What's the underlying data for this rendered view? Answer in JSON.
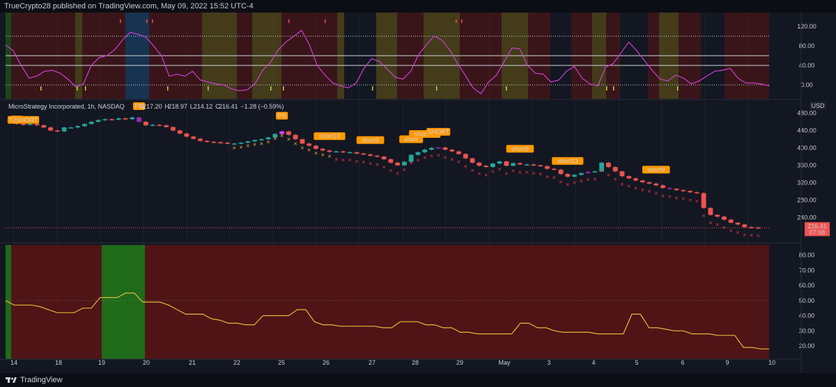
{
  "header": {
    "text": "TrueCrypto28 published on TradingView.com, May 09, 2022 15:52 UTC-4"
  },
  "footer": {
    "brand": "TradingView"
  },
  "colors": {
    "background": "#131722",
    "up": "#26a69a",
    "down": "#ef5350",
    "purple": "#9c27b0",
    "magenta": "#e040fb",
    "label_orange": "#ff9800",
    "bg_red": "#5a1414",
    "bg_green": "#1f6b1a",
    "bg_olive": "#6b5a14",
    "bg_blue": "#1c4a78",
    "oscillator": "#d13fd6",
    "bottom_line": "#e2b93b"
  },
  "chart_data": [
    {
      "type": "line",
      "panel": "oscillator",
      "y_ticks": [
        0,
        40,
        80,
        120
      ],
      "y_tick_labels": [
        "0.00",
        "40.00",
        "80.00",
        "120.00"
      ],
      "ylim": [
        -20,
        140
      ],
      "series": [
        {
          "values": [
            82,
            70,
            40,
            14,
            18,
            28,
            30,
            24,
            12,
            -4,
            2,
            40,
            56,
            60,
            72,
            92,
            108,
            104,
            98,
            80,
            60,
            18,
            22,
            18,
            28,
            10,
            6,
            2,
            0,
            -8,
            -12,
            -10,
            2,
            30,
            46,
            72,
            88,
            100,
            112,
            82,
            40,
            20,
            4,
            -2,
            -6,
            4,
            34,
            54,
            48,
            32,
            16,
            12,
            28,
            62,
            82,
            100,
            92,
            72,
            44,
            20,
            -6,
            -18,
            6,
            20,
            48,
            76,
            74,
            40,
            24,
            22,
            6,
            10,
            28,
            38,
            14,
            2,
            -2,
            36,
            44,
            66,
            88,
            70,
            50,
            30,
            12,
            8,
            20,
            14,
            2,
            8,
            18,
            28,
            30,
            34,
            14,
            4,
            4,
            2,
            -2
          ]
        }
      ]
    },
    {
      "type": "candlestick",
      "panel": "price",
      "legend": {
        "symbol": "MicroStrategy Incorporated, 1h, NASDAQ",
        "open_label": "O",
        "open": "217.20",
        "high_label": "H",
        "high": "218.97",
        "low_label": "L",
        "low": "214.12",
        "close_label": "C",
        "close": "216.41",
        "change": "−1.28 (−0.59%)"
      },
      "currency": "USD",
      "last_price": "216.41",
      "countdown": "07:08",
      "y_ticks": [
        240,
        280,
        320,
        360,
        400,
        440,
        480
      ],
      "y_tick_labels": [
        "240.00",
        "280.00",
        "320.00",
        "360.00",
        "400.00",
        "440.00",
        "480.00"
      ],
      "ylim": [
        196,
        500
      ],
      "close": [
        458,
        455,
        454,
        455,
        452,
        447,
        440,
        438,
        447,
        447,
        450,
        455,
        460,
        464,
        466,
        465,
        468,
        466,
        470,
        460,
        452,
        453,
        452,
        448,
        440,
        433,
        426,
        421,
        416,
        414,
        413,
        412,
        410,
        410,
        412,
        415,
        418,
        420,
        424,
        432,
        438,
        430,
        420,
        410,
        405,
        398,
        394,
        391,
        392,
        390,
        390,
        387,
        385,
        382,
        380,
        374,
        366,
        360,
        368,
        384,
        390,
        396,
        400,
        401,
        396,
        392,
        386,
        376,
        366,
        359,
        356,
        364,
        369,
        359,
        365,
        362,
        362,
        360,
        358,
        352,
        350,
        340,
        334,
        338,
        342,
        345,
        346,
        366,
        356,
        346,
        335,
        330,
        325,
        321,
        318,
        314,
        308,
        306,
        303,
        301,
        298,
        296,
        262,
        246,
        242,
        235,
        228,
        224,
        218,
        217,
        216.41
      ]
    },
    {
      "type": "line",
      "panel": "lower",
      "y_ticks": [
        20,
        30,
        40,
        50,
        60,
        70,
        80
      ],
      "y_tick_labels": [
        "20.00",
        "30.00",
        "40.00",
        "50.00",
        "60.00",
        "70.00",
        "80.00"
      ],
      "ylim": [
        14,
        84
      ],
      "series": [
        {
          "values": [
            50,
            47,
            47,
            47,
            46,
            44,
            42,
            42,
            42,
            45,
            45,
            52,
            52,
            52,
            55,
            55,
            49,
            49,
            49,
            47,
            44,
            41,
            41,
            41,
            38,
            37,
            35,
            35,
            34,
            34,
            40,
            40,
            40,
            40,
            44,
            44,
            36,
            34,
            34,
            33,
            33,
            33,
            33,
            33,
            32,
            32,
            36,
            36,
            36,
            34,
            34,
            32,
            32,
            29,
            29,
            28,
            28,
            28,
            28,
            28,
            35,
            35,
            32,
            32,
            30,
            29,
            29,
            29,
            29,
            28,
            28,
            28,
            28,
            41,
            41,
            32,
            32,
            31,
            30,
            30,
            28,
            28,
            28,
            27,
            27,
            27,
            19,
            19,
            18,
            18
          ]
        }
      ]
    }
  ],
  "annotations": {
    "labels": [
      {
        "text": "PS",
        "idx": 1,
        "dir": "below"
      },
      {
        "text": "T2SHORT",
        "idx": 2,
        "dir": "below"
      },
      {
        "text": "PS",
        "idx": 19,
        "dir": "above"
      },
      {
        "text": "PS",
        "idx": 40,
        "dir": "above"
      },
      {
        "text": "short13",
        "idx": 47,
        "dir": "above"
      },
      {
        "text": "short9",
        "idx": 53,
        "dir": "above"
      },
      {
        "text": "short",
        "idx": 59,
        "dir": "above"
      },
      {
        "text": "short45",
        "idx": 61,
        "dir": "above"
      },
      {
        "text": "SHORT",
        "idx": 63,
        "dir": "above"
      },
      {
        "text": "short9",
        "idx": 75,
        "dir": "above"
      },
      {
        "text": "short13",
        "idx": 82,
        "dir": "above"
      },
      {
        "text": "short9",
        "idx": 95,
        "dir": "above"
      }
    ]
  },
  "x_axis": {
    "labels": [
      "14",
      "18",
      "19",
      "20",
      "21",
      "22",
      "25",
      "26",
      "27",
      "28",
      "29",
      "May",
      "3",
      "4",
      "5",
      "6",
      "9",
      "10"
    ]
  }
}
